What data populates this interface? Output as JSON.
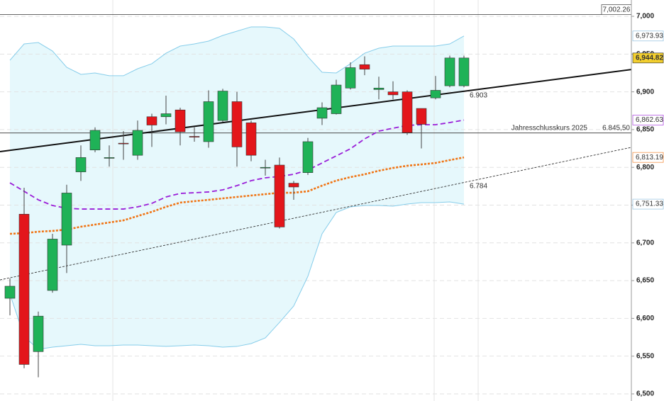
{
  "chart_data": {
    "type": "candlestick",
    "categories": [
      null,
      null,
      null,
      null,
      null,
      null,
      null,
      null,
      null,
      null,
      null,
      null,
      null,
      null,
      null,
      null,
      null,
      null,
      null,
      null,
      null,
      null,
      null,
      null,
      null,
      null,
      null,
      null,
      null,
      null,
      null,
      null,
      null
    ],
    "candles": {
      "open": [
        6626.6,
        6738,
        6556,
        6637,
        6697,
        6794,
        6823,
        6812,
        6832,
        6816,
        6867,
        6867,
        6876,
        6841,
        6834,
        6862,
        6887,
        6859,
        6800,
        6803,
        6779,
        6793,
        6865,
        6871,
        6905,
        6936,
        6903,
        6900,
        6900,
        6878,
        6892,
        6908,
        6908
      ],
      "high": [
        6653,
        6773,
        6609,
        6712,
        6777,
        6829,
        6853,
        6829,
        6848,
        6862,
        6871,
        6895,
        6879,
        6853,
        6902,
        6904,
        6900,
        6862,
        6810,
        6813,
        6782,
        6839,
        6886,
        6916,
        6939,
        6947,
        6920,
        6914,
        6902,
        6878,
        6921,
        6948,
        6948
      ],
      "low": [
        6604,
        6534,
        6522,
        6634,
        6660,
        6782,
        6820,
        6801,
        6810,
        6810,
        6827,
        6857,
        6829,
        6834,
        6826,
        6860,
        6801,
        6808,
        6789,
        6719,
        6757,
        6790,
        6856,
        6870,
        6903,
        6922,
        6890,
        6890,
        6843,
        6825,
        6890,
        6906,
        6906
      ],
      "close": [
        6642.6,
        6539,
        6603,
        6705,
        6766,
        6813,
        6849,
        6813,
        6831,
        6849,
        6856,
        6871,
        6847,
        6840,
        6887,
        6901,
        6827,
        6816,
        6800,
        6721,
        6774,
        6834,
        6879,
        6909,
        6932,
        6930,
        6905,
        6896,
        6846,
        6857,
        6902,
        6944.82,
        6944.82
      ],
      "up_color": "#1fb257",
      "down_color": "#e3161b"
    },
    "band_fill": "#e6f8fc",
    "lines": [
      {
        "color": "#86cdea",
        "style": "solid",
        "values": [
          6941.8,
          6963.4,
          6965.3,
          6954.0,
          6932.5,
          6923.1,
          6925.0,
          6921.3,
          6921.3,
          6930.6,
          6937.2,
          6951.2,
          6960.6,
          6963.4,
          6967.2,
          6974.7,
          6980.3,
          6986.0,
          6986.0,
          6984.1,
          6970.0,
          6946.5,
          6925.9,
          6925.0,
          6937.2,
          6951.2,
          6957.8,
          6960.6,
          6960.6,
          6960.6,
          6960.6,
          6963.4,
          6973.93
        ]
      },
      {
        "color": "#86cdea",
        "style": "solid",
        "values": [
          6632.3,
          6576,
          6559.1,
          6561.9,
          6563.8,
          6565.7,
          6563.8,
          6563.8,
          6564.7,
          6564.7,
          6563.8,
          6562.9,
          6563.8,
          6564.7,
          6563.8,
          6561.9,
          6562.9,
          6566.6,
          6574.1,
          6594.7,
          6616.3,
          6655.7,
          6712,
          6740.2,
          6747.7,
          6749.5,
          6749.5,
          6748.6,
          6751.4,
          6753.3,
          6753.3,
          6754.2,
          6751.33
        ]
      },
      {
        "color": "#9a1ed8",
        "style": "dashed",
        "values": [
          6779.5,
          6768.3,
          6757,
          6749.5,
          6745.8,
          6744.8,
          6744.8,
          6744.8,
          6744.8,
          6747.7,
          6752.3,
          6760.8,
          6765.5,
          6766.4,
          6767.4,
          6770.2,
          6775.8,
          6782.4,
          6786.1,
          6788,
          6790.8,
          6796.4,
          6805.8,
          6815.2,
          6824.6,
          6837.7,
          6848,
          6851.8,
          6855.5,
          6856.5,
          6856.5,
          6859.3,
          6862.63
        ]
      },
      {
        "color": "#f07414",
        "style": "dotted",
        "values": [
          6712,
          6712.9,
          6714.8,
          6715.8,
          6717.6,
          6721.4,
          6724.2,
          6727,
          6729.8,
          6735.5,
          6741.1,
          6747.7,
          6753.3,
          6755.2,
          6757,
          6758.9,
          6760.8,
          6762.7,
          6764.5,
          6766.4,
          6766.4,
          6768.3,
          6775.8,
          6782.4,
          6787.1,
          6790.8,
          6795.5,
          6799.2,
          6802.1,
          6803.9,
          6805.8,
          6809.6,
          6813.19
        ]
      }
    ],
    "trendlines": [
      {
        "x": [
          -0.7,
          43.8
        ],
        "values": [
          6820.8,
          6929.6
        ],
        "color": "#111111",
        "style": "solid",
        "label": "6.903"
      },
      {
        "x": [
          -0.7,
          43.8
        ],
        "values": [
          6651,
          6826.5
        ],
        "color": "#333333",
        "style": "dashed",
        "label": "6.784"
      }
    ],
    "hlines": [
      {
        "value": 7002.26,
        "label": "7,002.26"
      },
      {
        "value": 6845.5,
        "label": "6.845,50",
        "title": "Jahresschlusskurs 2025"
      }
    ],
    "price_tags": [
      {
        "value": 6973.93,
        "label": "6,973.93",
        "color": "#7fb6da",
        "fill": "#ffffff"
      },
      {
        "value": 6944.82,
        "label": "6,944.82",
        "color": "#222222",
        "fill": "#f3cf2e"
      },
      {
        "value": 6862.63,
        "label": "6,862.63",
        "color": "#9a1ed8",
        "fill": "#ffffff"
      },
      {
        "value": 6813.19,
        "label": "6,813.19",
        "color": "#f07414",
        "fill": "#ffffff"
      },
      {
        "value": 6751.33,
        "label": "6,751.33",
        "color": "#7fb6da",
        "fill": "#ffffff"
      }
    ],
    "ylim": [
      6490.6,
      7021.6
    ],
    "yticks": [
      {
        "value": 6500,
        "label": "6,500"
      },
      {
        "value": 6550,
        "label": "6,550"
      },
      {
        "value": 6600,
        "label": "6,600"
      },
      {
        "value": 6650,
        "label": "6,650"
      },
      {
        "value": 6700,
        "label": "6,700"
      },
      {
        "value": 6750,
        "label": "6,750"
      },
      {
        "value": 6800,
        "label": "6,800"
      },
      {
        "value": 6850,
        "label": "6,850"
      },
      {
        "value": 6900,
        "label": "6,900"
      },
      {
        "value": 6950,
        "label": "6,950"
      },
      {
        "value": 7000,
        "label": "7,000"
      }
    ],
    "grid": true
  }
}
